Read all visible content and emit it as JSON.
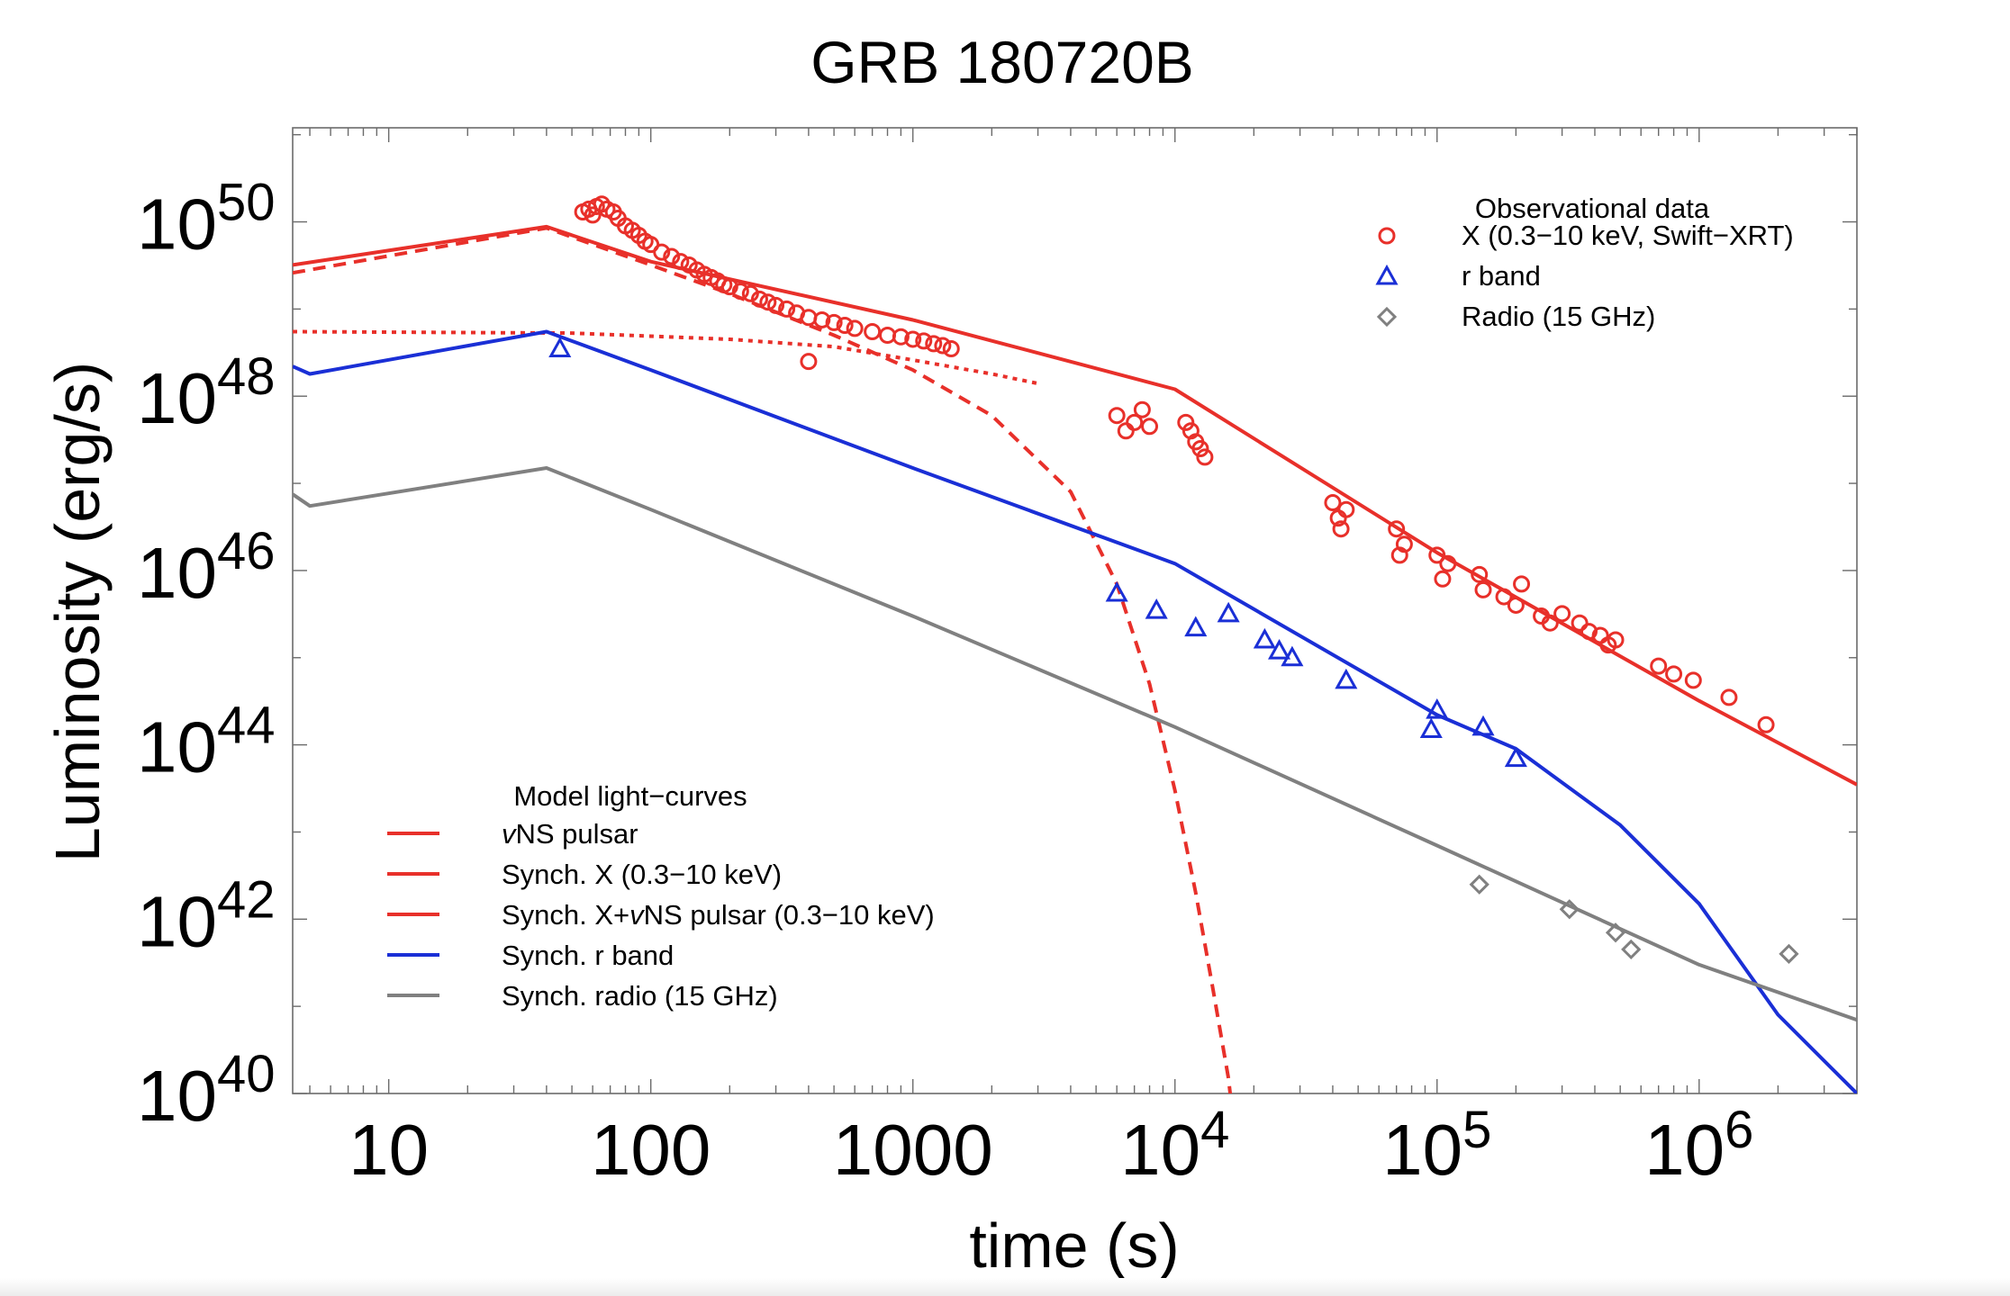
{
  "chart_data": {
    "type": "scatter",
    "title": "GRB 180720B",
    "xlabel": "time (s)",
    "ylabel": "Luminosity (erg/s)",
    "x_scale": "log",
    "y_scale": "log",
    "xlim": [
      4.3,
      4000000
    ],
    "ylim": [
      1e+40,
      1.2e+51
    ],
    "x_ticks": [
      {
        "value": 10,
        "label": "10"
      },
      {
        "value": 100,
        "label": "100"
      },
      {
        "value": 1000,
        "label": "1000"
      },
      {
        "value": 10000,
        "base": "10",
        "exp": "4"
      },
      {
        "value": 100000,
        "base": "10",
        "exp": "5"
      },
      {
        "value": 1000000,
        "base": "10",
        "exp": "6"
      }
    ],
    "y_ticks": [
      {
        "value": 1e+40,
        "base": "10",
        "exp": "40"
      },
      {
        "value": 1e+42,
        "base": "10",
        "exp": "42"
      },
      {
        "value": 1e+44,
        "base": "10",
        "exp": "44"
      },
      {
        "value": 1e+46,
        "base": "10",
        "exp": "46"
      },
      {
        "value": 1e+48,
        "base": "10",
        "exp": "48"
      },
      {
        "value": 1e+50,
        "base": "10",
        "exp": "50"
      }
    ],
    "grid": false,
    "legend_data": {
      "position": "top-right",
      "title": "Observational data",
      "entries": [
        {
          "label": "X (0.3−10 keV, Swift−XRT)",
          "marker": "circle",
          "color": "#e8302a"
        },
        {
          "label": "r band",
          "marker": "triangle",
          "color": "#1a2fd6"
        },
        {
          "label": "Radio (15 GHz)",
          "marker": "diamond",
          "color": "#808080"
        }
      ]
    },
    "legend_models": {
      "position": "bottom-left",
      "title": "Model light−curves",
      "entries": [
        {
          "prefix": "v",
          "label": "NS pulsar",
          "color": "#e8302a"
        },
        {
          "prefix": "",
          "label": "Synch. X (0.3−10 keV)",
          "color": "#e8302a"
        },
        {
          "prefix": "",
          "label": "Synch. X+",
          "mid_italic": "v",
          "label2": "NS pulsar (0.3−10 keV)",
          "color": "#e8302a"
        },
        {
          "prefix": "",
          "label": "Synch. r band",
          "color": "#1a2fd6"
        },
        {
          "prefix": "",
          "label": "Synch. radio (15 GHz)",
          "color": "#808080"
        }
      ]
    },
    "model_curves": [
      {
        "name": "Synch. X+vNS pulsar (0.3−10 keV)",
        "style": "solid",
        "color": "#e8302a",
        "points": [
          [
            4.3,
            3.2e+49
          ],
          [
            40,
            8.8e+49
          ],
          [
            100,
            3.5e+49
          ],
          [
            1000,
            7.5e+48
          ],
          [
            10000,
            1.2e+48
          ],
          [
            100000,
            1.6e+46
          ],
          [
            1000000,
            3.2e+44
          ],
          [
            4000000,
            3.5e+43
          ]
        ]
      },
      {
        "name": "Synch. X (0.3−10 keV)",
        "style": "dashed",
        "color": "#e8302a",
        "points": [
          [
            4.3,
            2.6e+49
          ],
          [
            40,
            8.5e+49
          ],
          [
            100,
            3.2e+49
          ],
          [
            200,
            1.5e+49
          ],
          [
            500,
            5e+48
          ],
          [
            1000,
            2e+48
          ],
          [
            2000,
            6e+47
          ],
          [
            4000,
            8e+46
          ],
          [
            6000,
            7e+45
          ],
          [
            8000,
            5e+44
          ],
          [
            10000,
            3e+43
          ],
          [
            12000,
            2e+42
          ],
          [
            14000,
            1.5e+41
          ],
          [
            16000,
            1.5e+40
          ],
          [
            17000,
            3e+39
          ]
        ]
      },
      {
        "name": "vNS pulsar",
        "style": "dotted",
        "color": "#e8302a",
        "points": [
          [
            4.3,
            5.5e+48
          ],
          [
            50,
            5.3e+48
          ],
          [
            200,
            4.5e+48
          ],
          [
            500,
            3.7e+48
          ],
          [
            1000,
            2.6e+48
          ],
          [
            2000,
            1.8e+48
          ],
          [
            3000,
            1.4e+48
          ]
        ]
      },
      {
        "name": "Synch. r band",
        "style": "solid",
        "color": "#1a2fd6",
        "points": [
          [
            4.3,
            2.2e+48
          ],
          [
            5,
            1.8e+48
          ],
          [
            40,
            5.5e+48
          ],
          [
            100,
            2e+48
          ],
          [
            1000,
            1.5e+47
          ],
          [
            10000,
            1.2e+46
          ],
          [
            100000,
            2.2e+44
          ],
          [
            200000,
            9e+43
          ],
          [
            500000,
            1.2e+43
          ],
          [
            1000000,
            1.5e+42
          ],
          [
            2000000,
            8e+40
          ],
          [
            4000000,
            1e+40
          ]
        ]
      },
      {
        "name": "Synch. radio (15 GHz)",
        "style": "solid",
        "color": "#808080",
        "points": [
          [
            4.3,
            7.5e+46
          ],
          [
            5,
            5.5e+46
          ],
          [
            40,
            1.5e+47
          ],
          [
            100,
            5e+46
          ],
          [
            1000,
            3e+45
          ],
          [
            10000,
            1.6e+44
          ],
          [
            100000,
            7e+42
          ],
          [
            1000000,
            3e+41
          ],
          [
            4000000,
            7e+40
          ]
        ]
      }
    ],
    "series": [
      {
        "name": "X (0.3−10 keV, Swift−XRT)",
        "marker": "circle",
        "color": "#e8302a",
        "points": [
          [
            55,
            1.3e+50
          ],
          [
            58,
            1.4e+50
          ],
          [
            60,
            1.2e+50
          ],
          [
            62,
            1.5e+50
          ],
          [
            65,
            1.6e+50
          ],
          [
            68,
            1.4e+50
          ],
          [
            72,
            1.3e+50
          ],
          [
            75,
            1.1e+50
          ],
          [
            80,
            9e+49
          ],
          [
            85,
            8e+49
          ],
          [
            90,
            7e+49
          ],
          [
            95,
            6e+49
          ],
          [
            100,
            5.5e+49
          ],
          [
            110,
            4.5e+49
          ],
          [
            120,
            4e+49
          ],
          [
            130,
            3.5e+49
          ],
          [
            140,
            3.2e+49
          ],
          [
            150,
            2.8e+49
          ],
          [
            160,
            2.5e+49
          ],
          [
            170,
            2.3e+49
          ],
          [
            180,
            2.1e+49
          ],
          [
            190,
            1.9e+49
          ],
          [
            200,
            1.8e+49
          ],
          [
            220,
            1.6e+49
          ],
          [
            240,
            1.5e+49
          ],
          [
            260,
            1.3e+49
          ],
          [
            280,
            1.2e+49
          ],
          [
            300,
            1.1e+49
          ],
          [
            330,
            1e+49
          ],
          [
            360,
            9e+48
          ],
          [
            400,
            8e+48
          ],
          [
            450,
            7.5e+48
          ],
          [
            500,
            7e+48
          ],
          [
            550,
            6.5e+48
          ],
          [
            600,
            6e+48
          ],
          [
            700,
            5.5e+48
          ],
          [
            800,
            5e+48
          ],
          [
            900,
            4.8e+48
          ],
          [
            1000,
            4.5e+48
          ],
          [
            1100,
            4.3e+48
          ],
          [
            1200,
            4e+48
          ],
          [
            1300,
            3.8e+48
          ],
          [
            1400,
            3.5e+48
          ],
          [
            400,
            2.5e+48
          ],
          [
            6000,
            6e+47
          ],
          [
            6500,
            4e+47
          ],
          [
            7000,
            5e+47
          ],
          [
            7500,
            7e+47
          ],
          [
            8000,
            4.5e+47
          ],
          [
            11000,
            5e+47
          ],
          [
            12000,
            3e+47
          ],
          [
            13000,
            2e+47
          ],
          [
            11500,
            4e+47
          ],
          [
            12500,
            2.5e+47
          ],
          [
            40000,
            6e+46
          ],
          [
            42000,
            4e+46
          ],
          [
            45000,
            5e+46
          ],
          [
            43000,
            3e+46
          ],
          [
            70000,
            3e+46
          ],
          [
            72000,
            1.5e+46
          ],
          [
            75000,
            2e+46
          ],
          [
            100000,
            1.5e+46
          ],
          [
            105000,
            8e+45
          ],
          [
            110000,
            1.2e+46
          ],
          [
            145000,
            9e+45
          ],
          [
            150000,
            6e+45
          ],
          [
            180000,
            5e+45
          ],
          [
            200000,
            4e+45
          ],
          [
            210000,
            7e+45
          ],
          [
            250000,
            3e+45
          ],
          [
            270000,
            2.5e+45
          ],
          [
            300000,
            3.2e+45
          ],
          [
            350000,
            2.5e+45
          ],
          [
            380000,
            2e+45
          ],
          [
            420000,
            1.8e+45
          ],
          [
            450000,
            1.4e+45
          ],
          [
            480000,
            1.6e+45
          ],
          [
            700000,
            8e+44
          ],
          [
            800000,
            6.5e+44
          ],
          [
            950000,
            5.5e+44
          ],
          [
            1300000,
            3.5e+44
          ],
          [
            1800000,
            1.7e+44
          ]
        ]
      },
      {
        "name": "r band",
        "marker": "triangle",
        "color": "#1a2fd6",
        "points": [
          [
            45,
            3.5e+48
          ],
          [
            6000,
            5.5e+45
          ],
          [
            8500,
            3.5e+45
          ],
          [
            12000,
            2.2e+45
          ],
          [
            16000,
            3.2e+45
          ],
          [
            22000,
            1.6e+45
          ],
          [
            25000,
            1.2e+45
          ],
          [
            28000,
            1e+45
          ],
          [
            45000,
            5.5e+44
          ],
          [
            100000,
            2.5e+44
          ],
          [
            95000,
            1.5e+44
          ],
          [
            150000,
            1.6e+44
          ],
          [
            200000,
            7e+43
          ]
        ]
      },
      {
        "name": "Radio (15 GHz)",
        "marker": "diamond",
        "color": "#808080",
        "points": [
          [
            145000,
            2.5e+42
          ],
          [
            320000,
            1.3e+42
          ],
          [
            480000,
            7e+41
          ],
          [
            550000,
            4.5e+41
          ],
          [
            2200000,
            4e+41
          ]
        ]
      }
    ]
  }
}
